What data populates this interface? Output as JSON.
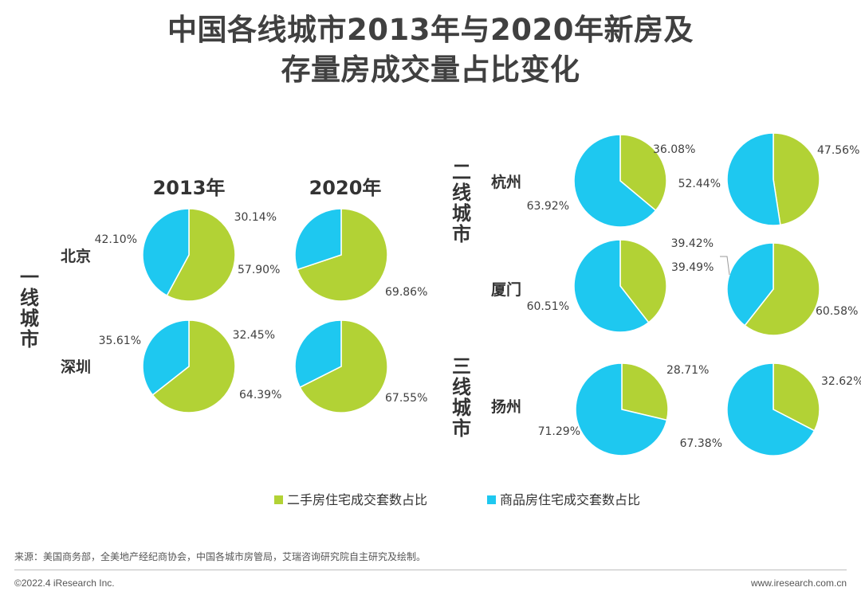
{
  "title_line1": "中国各线城市2013年与2020年新房及",
  "title_line2": "存量房成交量占比变化",
  "colors": {
    "secondhand": "#b2d235",
    "new": "#1ec8f0"
  },
  "chart_data": {
    "type": "pie",
    "title": "中国各线城市2013年与2020年新房及存量房成交量占比变化",
    "years": [
      "2013年",
      "2020年"
    ],
    "tiers": [
      {
        "label": "一线城市",
        "cities": [
          "北京",
          "深圳"
        ]
      },
      {
        "label": "二线城市",
        "cities": [
          "杭州",
          "厦门"
        ]
      },
      {
        "label": "三线城市",
        "cities": [
          "扬州"
        ]
      }
    ],
    "series_names": [
      "二手房住宅成交套数占比",
      "商品房住宅成交套数占比"
    ],
    "pies": [
      {
        "city": "北京",
        "year": "2013年",
        "secondhand": 57.9,
        "new": 42.1,
        "secondhand_label": "57.90%",
        "new_label": "42.10%"
      },
      {
        "city": "北京",
        "year": "2020年",
        "secondhand": 69.86,
        "new": 30.14,
        "secondhand_label": "69.86%",
        "new_label": "30.14%"
      },
      {
        "city": "深圳",
        "year": "2013年",
        "secondhand": 64.39,
        "new": 35.61,
        "secondhand_label": "64.39%",
        "new_label": "35.61%"
      },
      {
        "city": "深圳",
        "year": "2020年",
        "secondhand": 67.55,
        "new": 32.45,
        "secondhand_label": "67.55%",
        "new_label": "32.45%"
      },
      {
        "city": "杭州",
        "year": "2013年",
        "secondhand": 36.08,
        "new": 63.92,
        "secondhand_label": "36.08%",
        "new_label": "63.92%"
      },
      {
        "city": "杭州",
        "year": "2020年",
        "secondhand": 47.56,
        "new": 52.44,
        "secondhand_label": "47.56%",
        "new_label": "52.44%"
      },
      {
        "city": "厦门",
        "year": "2013年",
        "secondhand": 39.49,
        "new": 60.51,
        "secondhand_label": "39.49%",
        "new_label": "60.51%"
      },
      {
        "city": "厦门",
        "year": "2020年",
        "secondhand": 60.58,
        "new": 39.42,
        "secondhand_label": "60.58%",
        "new_label": "39.42%"
      },
      {
        "city": "扬州",
        "year": "2013年",
        "secondhand": 28.71,
        "new": 71.29,
        "secondhand_label": "28.71%",
        "new_label": "71.29%"
      },
      {
        "city": "扬州",
        "year": "2020年",
        "secondhand": 32.62,
        "new": 67.38,
        "secondhand_label": "32.62%",
        "new_label": "67.38%"
      }
    ],
    "legend": [
      {
        "label": "二手房住宅成交套数占比",
        "color": "#b2d235"
      },
      {
        "label": "商品房住宅成交套数占比",
        "color": "#1ec8f0"
      }
    ],
    "legend_position": "bottom"
  },
  "footer": {
    "source": "来源：美国商务部，全美地产经纪商协会，中国各城市房管局，艾瑞咨询研究院自主研究及绘制。",
    "copyright": "©2022.4 iResearch Inc.",
    "website": "www.iresearch.com.cn"
  }
}
